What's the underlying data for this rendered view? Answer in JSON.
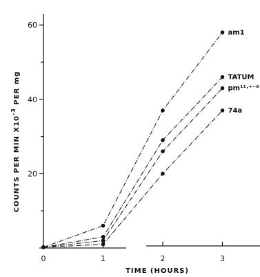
{
  "chart_data": {
    "type": "line",
    "xlabel": "TIME  (HOURS)",
    "ylabel": "COUNTS  PER  MIN  X10",
    "ylabel_exponent": "-3",
    "ylabel_suffix": "  PER  mg",
    "xlim": [
      0,
      3.5
    ],
    "ylim": [
      0,
      60
    ],
    "x_ticks": [
      0,
      1,
      2,
      3
    ],
    "x_tick_labels": [
      "0",
      "1",
      "2",
      "3"
    ],
    "y_ticks": [
      0,
      20,
      40,
      60
    ],
    "y_tick_labels": [
      "",
      "20",
      "40",
      "60"
    ],
    "grid": false,
    "x": [
      0,
      1,
      2,
      3
    ],
    "series": [
      {
        "name": "am1",
        "values": [
          0.2,
          6,
          37,
          58
        ]
      },
      {
        "name": "TATUM",
        "values": [
          0.2,
          3,
          29,
          46
        ]
      },
      {
        "name": "pm¹¹·⁺⁻⁸",
        "values": [
          0.2,
          2,
          26,
          43
        ]
      },
      {
        "name": "74a",
        "values": [
          0.2,
          1,
          20,
          37
        ]
      }
    ]
  }
}
